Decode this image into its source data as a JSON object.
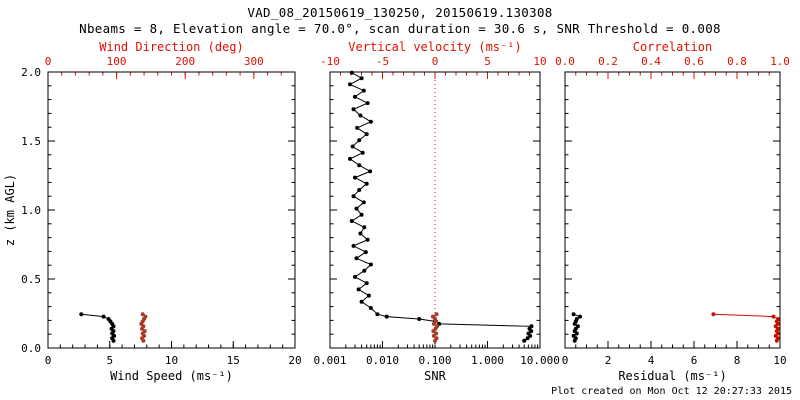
{
  "header": {
    "title": "VAD_08_20150619_130250, 20150619.130308",
    "subtitle": "Nbeams = 8, Elevation angle = 70.0°, scan duration = 30.6 s, SNR Threshold = 0.008"
  },
  "footer": {
    "created": "Plot created on Mon Oct 12 20:27:33 2015"
  },
  "colors": {
    "axis": "#000000",
    "red_axis": "#dd1100",
    "dark_red": "#a83c28",
    "corr_red": "#cc1100"
  },
  "chart_data": [
    {
      "id": "wind-panel",
      "type": "scatter",
      "ylabel": "z (km AGL)",
      "ylim": [
        0,
        2
      ],
      "ytick_labels": true,
      "yticks": [
        {
          "v": 0.0,
          "t": "0.0"
        },
        {
          "v": 0.5,
          "t": "0.5"
        },
        {
          "v": 1.0,
          "t": "1.0"
        },
        {
          "v": 1.5,
          "t": "1.5"
        },
        {
          "v": 2.0,
          "t": "2.0"
        }
      ],
      "bottom": {
        "label": "Wind Speed (ms⁻¹)",
        "lim": [
          0,
          20
        ],
        "scale": "linear",
        "minor": 1,
        "color": "#000000",
        "ticks": [
          {
            "v": 0,
            "t": "0"
          },
          {
            "v": 5,
            "t": "5"
          },
          {
            "v": 10,
            "t": "10"
          },
          {
            "v": 15,
            "t": "15"
          },
          {
            "v": 20,
            "t": "20"
          }
        ]
      },
      "top": {
        "label": "Wind Direction (deg)",
        "lim": [
          0,
          360
        ],
        "scale": "linear",
        "minor": 20,
        "color": "#dd1100",
        "ticks": [
          {
            "v": 0,
            "t": "0"
          },
          {
            "v": 100,
            "t": "100"
          },
          {
            "v": 200,
            "t": "200"
          },
          {
            "v": 300,
            "t": "300"
          }
        ]
      },
      "series": [
        {
          "name": "wind-speed",
          "axis": "bottom",
          "color": "#000000",
          "points": [
            [
              2.7,
              0.245
            ],
            [
              4.5,
              0.2275
            ],
            [
              4.9,
              0.21
            ],
            [
              5.05,
              0.1925
            ],
            [
              5.2,
              0.175
            ],
            [
              5.3,
              0.1575
            ],
            [
              5.15,
              0.14
            ],
            [
              5.3,
              0.1225
            ],
            [
              5.2,
              0.105
            ],
            [
              5.35,
              0.0875
            ],
            [
              5.2,
              0.07
            ],
            [
              5.3,
              0.0525
            ]
          ]
        },
        {
          "name": "wind-direction",
          "axis": "top",
          "color": "#a83c28",
          "points": [
            [
              138,
              0.245
            ],
            [
              142,
              0.2275
            ],
            [
              140,
              0.21
            ],
            [
              138,
              0.1925
            ],
            [
              136,
              0.175
            ],
            [
              139,
              0.1575
            ],
            [
              137,
              0.14
            ],
            [
              141,
              0.1225
            ],
            [
              138,
              0.105
            ],
            [
              140,
              0.0875
            ],
            [
              137,
              0.07
            ],
            [
              139,
              0.0525
            ]
          ]
        }
      ]
    },
    {
      "id": "snr-panel",
      "type": "line",
      "ylabel": "",
      "ylim": [
        0,
        2
      ],
      "ytick_labels": false,
      "yticks": [],
      "bottom": {
        "label": "SNR",
        "lim": [
          0.001,
          10
        ],
        "scale": "log",
        "color": "#000000",
        "ticks": [
          {
            "v": 0.001,
            "t": "0.001"
          },
          {
            "v": 0.01,
            "t": "0.010"
          },
          {
            "v": 0.1,
            "t": "0.100"
          },
          {
            "v": 1,
            "t": "1.000"
          },
          {
            "v": 10,
            "t": "10.000"
          }
        ]
      },
      "top": {
        "label": "Vertical velocity (ms⁻¹)",
        "lim": [
          -10,
          10
        ],
        "scale": "linear",
        "minor": 1,
        "color": "#dd1100",
        "refline": 0,
        "ticks": [
          {
            "v": -10,
            "t": "-10"
          },
          {
            "v": -5,
            "t": "-5"
          },
          {
            "v": 0,
            "t": "0"
          },
          {
            "v": 5,
            "t": "5"
          },
          {
            "v": 10,
            "t": "10"
          }
        ]
      },
      "series": [
        {
          "name": "snr",
          "axis": "bottom",
          "color": "#000000",
          "points": [
            [
              0.0026,
              1.995
            ],
            [
              0.004,
              1.955
            ],
            [
              0.0024,
              1.91
            ],
            [
              0.0044,
              1.865
            ],
            [
              0.003,
              1.82
            ],
            [
              0.0052,
              1.775
            ],
            [
              0.0028,
              1.73
            ],
            [
              0.0038,
              1.685
            ],
            [
              0.006,
              1.64
            ],
            [
              0.0033,
              1.595
            ],
            [
              0.005,
              1.55
            ],
            [
              0.0036,
              1.505
            ],
            [
              0.0027,
              1.46
            ],
            [
              0.0042,
              1.415
            ],
            [
              0.0024,
              1.37
            ],
            [
              0.0036,
              1.325
            ],
            [
              0.0058,
              1.28
            ],
            [
              0.003,
              1.235
            ],
            [
              0.005,
              1.19
            ],
            [
              0.0036,
              1.145
            ],
            [
              0.0028,
              1.1
            ],
            [
              0.0044,
              1.055
            ],
            [
              0.0032,
              1.01
            ],
            [
              0.004,
              0.965
            ],
            [
              0.0026,
              0.92
            ],
            [
              0.0045,
              0.875
            ],
            [
              0.0038,
              0.83
            ],
            [
              0.0052,
              0.785
            ],
            [
              0.0028,
              0.74
            ],
            [
              0.0048,
              0.695
            ],
            [
              0.0032,
              0.65
            ],
            [
              0.006,
              0.605
            ],
            [
              0.0045,
              0.56
            ],
            [
              0.003,
              0.515
            ],
            [
              0.005,
              0.47
            ],
            [
              0.0035,
              0.425
            ],
            [
              0.0055,
              0.38
            ],
            [
              0.004,
              0.335
            ],
            [
              0.006,
              0.29
            ],
            [
              0.008,
              0.245
            ],
            [
              0.012,
              0.2275
            ],
            [
              0.05,
              0.21
            ],
            [
              0.1,
              0.1925
            ],
            [
              0.12,
              0.175
            ],
            [
              6.9,
              0.1575
            ],
            [
              6.3,
              0.14
            ],
            [
              6.8,
              0.1225
            ],
            [
              6.0,
              0.105
            ],
            [
              6.5,
              0.0875
            ],
            [
              5.8,
              0.07
            ],
            [
              5.0,
              0.0525
            ]
          ]
        },
        {
          "name": "vertical-velocity",
          "axis": "top",
          "color": "#a83c28",
          "points": [
            [
              0.15,
              0.245
            ],
            [
              -0.2,
              0.2275
            ],
            [
              0.0,
              0.21
            ],
            [
              0.1,
              0.1925
            ],
            [
              -0.1,
              0.175
            ],
            [
              0.2,
              0.1575
            ],
            [
              0.05,
              0.14
            ],
            [
              -0.15,
              0.1225
            ],
            [
              0.1,
              0.105
            ],
            [
              -0.1,
              0.0875
            ],
            [
              0.15,
              0.07
            ],
            [
              0.0,
              0.0525
            ]
          ]
        }
      ]
    },
    {
      "id": "residual-panel",
      "type": "scatter",
      "ylabel": "",
      "ylim": [
        0,
        2
      ],
      "ytick_labels": false,
      "yticks": [],
      "bottom": {
        "label": "Residual (ms⁻¹)",
        "lim": [
          0,
          10
        ],
        "scale": "linear",
        "minor": 0.5,
        "color": "#000000",
        "ticks": [
          {
            "v": 0,
            "t": "0"
          },
          {
            "v": 2,
            "t": "2"
          },
          {
            "v": 4,
            "t": "4"
          },
          {
            "v": 6,
            "t": "6"
          },
          {
            "v": 8,
            "t": "8"
          },
          {
            "v": 10,
            "t": "10"
          }
        ]
      },
      "top": {
        "label": "Correlation",
        "lim": [
          0,
          1
        ],
        "scale": "linear",
        "minor": 0.05,
        "color": "#dd1100",
        "ticks": [
          {
            "v": 0,
            "t": "0.0"
          },
          {
            "v": 0.2,
            "t": "0.2"
          },
          {
            "v": 0.4,
            "t": "0.4"
          },
          {
            "v": 0.6,
            "t": "0.6"
          },
          {
            "v": 0.8,
            "t": "0.8"
          },
          {
            "v": 1.0,
            "t": "1.0"
          }
        ]
      },
      "series": [
        {
          "name": "residual",
          "axis": "bottom",
          "color": "#000000",
          "points": [
            [
              0.4,
              0.245
            ],
            [
              0.7,
              0.2275
            ],
            [
              0.55,
              0.21
            ],
            [
              0.5,
              0.1925
            ],
            [
              0.45,
              0.175
            ],
            [
              0.6,
              0.1575
            ],
            [
              0.5,
              0.14
            ],
            [
              0.45,
              0.1225
            ],
            [
              0.55,
              0.105
            ],
            [
              0.4,
              0.0875
            ],
            [
              0.5,
              0.07
            ],
            [
              0.45,
              0.0525
            ]
          ]
        },
        {
          "name": "correlation",
          "axis": "top",
          "color": "#cc1100",
          "points": [
            [
              0.69,
              0.245
            ],
            [
              0.97,
              0.2275
            ],
            [
              0.99,
              0.21
            ],
            [
              0.985,
              0.1925
            ],
            [
              0.99,
              0.175
            ],
            [
              0.98,
              0.1575
            ],
            [
              0.99,
              0.14
            ],
            [
              0.985,
              0.1225
            ],
            [
              0.99,
              0.105
            ],
            [
              0.98,
              0.0875
            ],
            [
              0.99,
              0.07
            ],
            [
              0.985,
              0.0525
            ]
          ]
        }
      ]
    }
  ]
}
